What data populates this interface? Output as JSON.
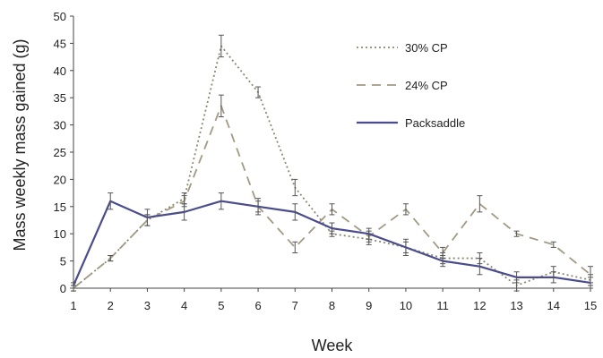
{
  "chart_data": {
    "type": "line",
    "xlabel": "Week",
    "ylabel": "Mass weekly mass gained (g)",
    "xlim": [
      1,
      15
    ],
    "ylim": [
      0,
      50
    ],
    "yticks": [
      0,
      5,
      10,
      15,
      20,
      25,
      30,
      35,
      40,
      45,
      50
    ],
    "x": [
      1,
      2,
      3,
      4,
      5,
      6,
      7,
      8,
      9,
      10,
      11,
      12,
      13,
      14,
      15
    ],
    "grid": false,
    "legend_position": "top-right",
    "series": [
      {
        "name": "30% CP",
        "style": "dotted",
        "color": "#8a8a72",
        "values": [
          0,
          5.5,
          12.5,
          16.5,
          44.5,
          36,
          18.5,
          10,
          9,
          7.5,
          5.5,
          5.5,
          0.5,
          3,
          1.5
        ],
        "errors": [
          0.5,
          0.5,
          1,
          1,
          2,
          1,
          1.5,
          0.5,
          1,
          1,
          1,
          1,
          1,
          1,
          1
        ]
      },
      {
        "name": "24% CP",
        "style": "dashed",
        "color": "#a39a84",
        "values": [
          0,
          5.5,
          12.5,
          16,
          33.5,
          15,
          7.5,
          14.5,
          9.5,
          14.5,
          6.5,
          15.5,
          10,
          8,
          2.5
        ],
        "errors": [
          0.5,
          0.5,
          1,
          1,
          2,
          1,
          1,
          1,
          1,
          1,
          1,
          1.5,
          0.5,
          0.5,
          1.5
        ]
      },
      {
        "name": "Packsaddle",
        "style": "solid",
        "color": "#4a4c8c",
        "values": [
          0.5,
          16,
          13,
          14,
          16,
          15,
          14,
          11,
          10,
          7.5,
          5,
          4,
          2,
          2,
          1
        ],
        "errors": [
          0.5,
          1.5,
          1.5,
          1.5,
          1.5,
          1.5,
          1.5,
          1,
          1,
          1.5,
          1,
          1.5,
          1,
          1,
          1
        ]
      }
    ]
  }
}
